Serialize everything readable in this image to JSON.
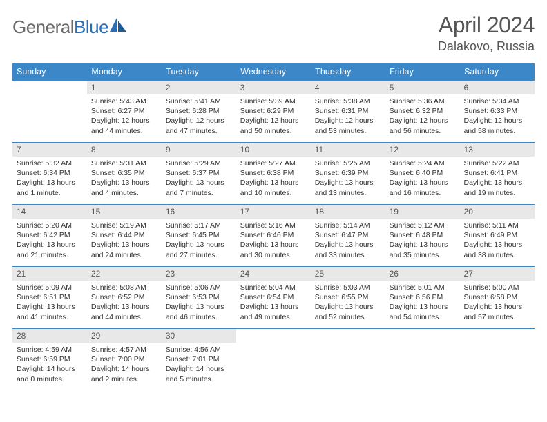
{
  "logo": {
    "word1": "General",
    "word2": "Blue"
  },
  "title": "April 2024",
  "location": "Dalakovo, Russia",
  "colors": {
    "header_bg": "#3b87c8",
    "header_text": "#ffffff",
    "daynum_bg": "#e8e8e8",
    "daynum_text": "#555555",
    "body_text": "#333333",
    "divider": "#3b87c8",
    "page_bg": "#ffffff",
    "logo_gray": "#6b6b6b",
    "logo_blue": "#2a6fb5"
  },
  "weekdays": [
    "Sunday",
    "Monday",
    "Tuesday",
    "Wednesday",
    "Thursday",
    "Friday",
    "Saturday"
  ],
  "weeks": [
    [
      null,
      {
        "n": "1",
        "sr": "Sunrise: 5:43 AM",
        "ss": "Sunset: 6:27 PM",
        "d1": "Daylight: 12 hours",
        "d2": "and 44 minutes."
      },
      {
        "n": "2",
        "sr": "Sunrise: 5:41 AM",
        "ss": "Sunset: 6:28 PM",
        "d1": "Daylight: 12 hours",
        "d2": "and 47 minutes."
      },
      {
        "n": "3",
        "sr": "Sunrise: 5:39 AM",
        "ss": "Sunset: 6:29 PM",
        "d1": "Daylight: 12 hours",
        "d2": "and 50 minutes."
      },
      {
        "n": "4",
        "sr": "Sunrise: 5:38 AM",
        "ss": "Sunset: 6:31 PM",
        "d1": "Daylight: 12 hours",
        "d2": "and 53 minutes."
      },
      {
        "n": "5",
        "sr": "Sunrise: 5:36 AM",
        "ss": "Sunset: 6:32 PM",
        "d1": "Daylight: 12 hours",
        "d2": "and 56 minutes."
      },
      {
        "n": "6",
        "sr": "Sunrise: 5:34 AM",
        "ss": "Sunset: 6:33 PM",
        "d1": "Daylight: 12 hours",
        "d2": "and 58 minutes."
      }
    ],
    [
      {
        "n": "7",
        "sr": "Sunrise: 5:32 AM",
        "ss": "Sunset: 6:34 PM",
        "d1": "Daylight: 13 hours",
        "d2": "and 1 minute."
      },
      {
        "n": "8",
        "sr": "Sunrise: 5:31 AM",
        "ss": "Sunset: 6:35 PM",
        "d1": "Daylight: 13 hours",
        "d2": "and 4 minutes."
      },
      {
        "n": "9",
        "sr": "Sunrise: 5:29 AM",
        "ss": "Sunset: 6:37 PM",
        "d1": "Daylight: 13 hours",
        "d2": "and 7 minutes."
      },
      {
        "n": "10",
        "sr": "Sunrise: 5:27 AM",
        "ss": "Sunset: 6:38 PM",
        "d1": "Daylight: 13 hours",
        "d2": "and 10 minutes."
      },
      {
        "n": "11",
        "sr": "Sunrise: 5:25 AM",
        "ss": "Sunset: 6:39 PM",
        "d1": "Daylight: 13 hours",
        "d2": "and 13 minutes."
      },
      {
        "n": "12",
        "sr": "Sunrise: 5:24 AM",
        "ss": "Sunset: 6:40 PM",
        "d1": "Daylight: 13 hours",
        "d2": "and 16 minutes."
      },
      {
        "n": "13",
        "sr": "Sunrise: 5:22 AM",
        "ss": "Sunset: 6:41 PM",
        "d1": "Daylight: 13 hours",
        "d2": "and 19 minutes."
      }
    ],
    [
      {
        "n": "14",
        "sr": "Sunrise: 5:20 AM",
        "ss": "Sunset: 6:42 PM",
        "d1": "Daylight: 13 hours",
        "d2": "and 21 minutes."
      },
      {
        "n": "15",
        "sr": "Sunrise: 5:19 AM",
        "ss": "Sunset: 6:44 PM",
        "d1": "Daylight: 13 hours",
        "d2": "and 24 minutes."
      },
      {
        "n": "16",
        "sr": "Sunrise: 5:17 AM",
        "ss": "Sunset: 6:45 PM",
        "d1": "Daylight: 13 hours",
        "d2": "and 27 minutes."
      },
      {
        "n": "17",
        "sr": "Sunrise: 5:16 AM",
        "ss": "Sunset: 6:46 PM",
        "d1": "Daylight: 13 hours",
        "d2": "and 30 minutes."
      },
      {
        "n": "18",
        "sr": "Sunrise: 5:14 AM",
        "ss": "Sunset: 6:47 PM",
        "d1": "Daylight: 13 hours",
        "d2": "and 33 minutes."
      },
      {
        "n": "19",
        "sr": "Sunrise: 5:12 AM",
        "ss": "Sunset: 6:48 PM",
        "d1": "Daylight: 13 hours",
        "d2": "and 35 minutes."
      },
      {
        "n": "20",
        "sr": "Sunrise: 5:11 AM",
        "ss": "Sunset: 6:49 PM",
        "d1": "Daylight: 13 hours",
        "d2": "and 38 minutes."
      }
    ],
    [
      {
        "n": "21",
        "sr": "Sunrise: 5:09 AM",
        "ss": "Sunset: 6:51 PM",
        "d1": "Daylight: 13 hours",
        "d2": "and 41 minutes."
      },
      {
        "n": "22",
        "sr": "Sunrise: 5:08 AM",
        "ss": "Sunset: 6:52 PM",
        "d1": "Daylight: 13 hours",
        "d2": "and 44 minutes."
      },
      {
        "n": "23",
        "sr": "Sunrise: 5:06 AM",
        "ss": "Sunset: 6:53 PM",
        "d1": "Daylight: 13 hours",
        "d2": "and 46 minutes."
      },
      {
        "n": "24",
        "sr": "Sunrise: 5:04 AM",
        "ss": "Sunset: 6:54 PM",
        "d1": "Daylight: 13 hours",
        "d2": "and 49 minutes."
      },
      {
        "n": "25",
        "sr": "Sunrise: 5:03 AM",
        "ss": "Sunset: 6:55 PM",
        "d1": "Daylight: 13 hours",
        "d2": "and 52 minutes."
      },
      {
        "n": "26",
        "sr": "Sunrise: 5:01 AM",
        "ss": "Sunset: 6:56 PM",
        "d1": "Daylight: 13 hours",
        "d2": "and 54 minutes."
      },
      {
        "n": "27",
        "sr": "Sunrise: 5:00 AM",
        "ss": "Sunset: 6:58 PM",
        "d1": "Daylight: 13 hours",
        "d2": "and 57 minutes."
      }
    ],
    [
      {
        "n": "28",
        "sr": "Sunrise: 4:59 AM",
        "ss": "Sunset: 6:59 PM",
        "d1": "Daylight: 14 hours",
        "d2": "and 0 minutes."
      },
      {
        "n": "29",
        "sr": "Sunrise: 4:57 AM",
        "ss": "Sunset: 7:00 PM",
        "d1": "Daylight: 14 hours",
        "d2": "and 2 minutes."
      },
      {
        "n": "30",
        "sr": "Sunrise: 4:56 AM",
        "ss": "Sunset: 7:01 PM",
        "d1": "Daylight: 14 hours",
        "d2": "and 5 minutes."
      },
      null,
      null,
      null,
      null
    ]
  ]
}
